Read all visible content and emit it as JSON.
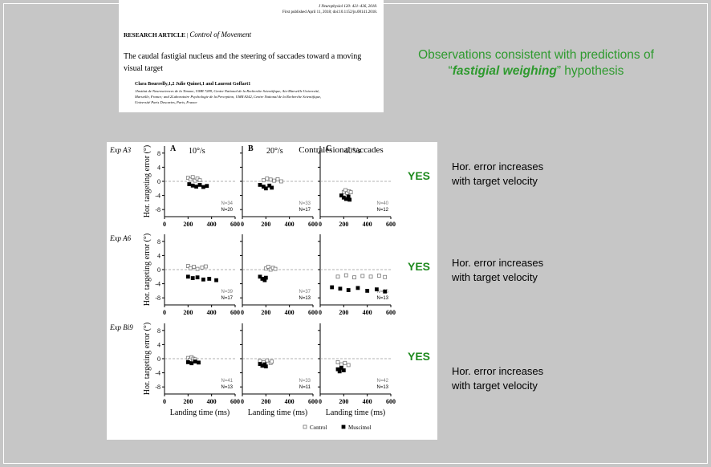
{
  "paper": {
    "citation": [
      "J Neurophysiol 120: 421–436, 2018.",
      "First published April 11, 2018; doi:10.1152/jn.00141.2018."
    ],
    "section": "RESEARCH ARTICLE",
    "separator": "|",
    "topic": "Control of Movement",
    "title": [
      "The caudal fastigial nucleus and the steering of saccades toward a moving",
      "visual target"
    ],
    "authors": "Clara Bourrelly,1,2 Julie Quinet,1 and Laurent Goffart1",
    "affiliation": [
      "1Institut de Neurosciences de la Timone, UMR 7289, Centre National de la Recherche Scientifique, Aix-Marseille Université,",
      "Marseille, France; and 2Laboratoire Psychologie de la Perception, UMR 8242, Centre National de la Recherche Scientifique,",
      "Université Paris Descartes, Paris, France"
    ]
  },
  "headline": {
    "line1": "Observations consistent with predictions of",
    "open_quote": "“",
    "emphasis": "fastigial weighing",
    "close": "” hypothesis"
  },
  "figure": {
    "title": "Contralesional saccades",
    "columns": [
      {
        "letter": "A",
        "velocity": "10°/s"
      },
      {
        "letter": "B",
        "velocity": "20°/s"
      },
      {
        "letter": "C",
        "velocity": "40°/s"
      }
    ],
    "rows": [
      "Exp A3",
      "Exp A6",
      "Exp Bi9"
    ],
    "y_label": "Hor. targeting error (°)",
    "x_label": "Landing time (ms)",
    "xlim": [
      0,
      600
    ],
    "xticks": [
      0,
      200,
      400,
      600
    ],
    "ylim": [
      -10,
      10
    ],
    "yticks": [
      8,
      4,
      0,
      -4,
      -8
    ],
    "legend": [
      {
        "name": "Control",
        "color": "#777777",
        "filled": false
      },
      {
        "name": "Muscimol",
        "color": "#000000",
        "filled": true
      }
    ],
    "panels": [
      {
        "n": [
          "N=34",
          "N=20"
        ],
        "points": [
          [
            [
              200,
              1
            ],
            [
              220,
              0.5
            ],
            [
              240,
              1.2
            ],
            [
              260,
              0.2
            ],
            [
              280,
              0.8
            ],
            [
              300,
              0.3
            ]
          ],
          [
            [
              210,
              -0.8
            ],
            [
              240,
              -1.2
            ],
            [
              270,
              -1.5
            ],
            [
              300,
              -1
            ],
            [
              330,
              -1.6
            ],
            [
              360,
              -1.3
            ]
          ]
        ]
      },
      {
        "n": [
          "N=33",
          "N=17"
        ],
        "points": [
          [
            [
              180,
              0.3
            ],
            [
              210,
              0.8
            ],
            [
              240,
              0.5
            ],
            [
              270,
              0.2
            ],
            [
              300,
              0.6
            ],
            [
              330,
              0
            ]
          ],
          [
            [
              150,
              -1
            ],
            [
              180,
              -1.5
            ],
            [
              200,
              -2
            ],
            [
              230,
              -1.2
            ],
            [
              250,
              -1.8
            ]
          ]
        ]
      },
      {
        "n": [
          "N=40",
          "N=12"
        ],
        "points": [
          [
            [
              200,
              -3
            ],
            [
              215,
              -2.5
            ],
            [
              230,
              -3.3
            ],
            [
              245,
              -2.8
            ],
            [
              260,
              -3.1
            ]
          ],
          [
            [
              180,
              -4
            ],
            [
              200,
              -4.6
            ],
            [
              220,
              -5
            ],
            [
              240,
              -4.3
            ],
            [
              250,
              -5.2
            ]
          ]
        ]
      },
      {
        "n": [
          "N=39",
          "N=17"
        ],
        "points": [
          [
            [
              200,
              1
            ],
            [
              220,
              0.4
            ],
            [
              250,
              0.8
            ],
            [
              280,
              0.2
            ],
            [
              320,
              0.6
            ],
            [
              350,
              0.9
            ]
          ],
          [
            [
              200,
              -2
            ],
            [
              240,
              -2.4
            ],
            [
              280,
              -2.2
            ],
            [
              330,
              -2.8
            ],
            [
              380,
              -2.6
            ],
            [
              440,
              -3
            ]
          ]
        ]
      },
      {
        "n": [
          "N=37",
          "N=13"
        ],
        "points": [
          [
            [
              200,
              0.3
            ],
            [
              220,
              0.8
            ],
            [
              240,
              0
            ],
            [
              260,
              0.5
            ],
            [
              280,
              0.2
            ]
          ],
          [
            [
              150,
              -2
            ],
            [
              170,
              -2.6
            ],
            [
              190,
              -3
            ],
            [
              200,
              -2.3
            ]
          ]
        ]
      },
      {
        "n": [
          "N=35",
          "N=13"
        ],
        "points": [
          [
            [
              150,
              -2
            ],
            [
              220,
              -1.6
            ],
            [
              290,
              -2.2
            ],
            [
              360,
              -1.8
            ],
            [
              430,
              -2
            ],
            [
              500,
              -1.7
            ],
            [
              550,
              -2.1
            ]
          ],
          [
            [
              100,
              -5
            ],
            [
              170,
              -5.4
            ],
            [
              240,
              -5.8
            ],
            [
              320,
              -5.2
            ],
            [
              400,
              -6
            ],
            [
              480,
              -5.6
            ],
            [
              550,
              -6.2
            ]
          ]
        ]
      },
      {
        "n": [
          "N=41",
          "N=13"
        ],
        "points": [
          [
            [
              200,
              0.2
            ],
            [
              215,
              -0.3
            ],
            [
              230,
              0.4
            ],
            [
              245,
              0
            ],
            [
              260,
              -0.2
            ]
          ],
          [
            [
              200,
              -1
            ],
            [
              230,
              -1.3
            ],
            [
              260,
              -0.8
            ],
            [
              290,
              -1.1
            ]
          ]
        ]
      },
      {
        "n": [
          "N=33",
          "N=11"
        ],
        "points": [
          [
            [
              150,
              -0.6
            ],
            [
              180,
              -1
            ],
            [
              210,
              -0.5
            ],
            [
              240,
              -1.2
            ],
            [
              250,
              -0.8
            ]
          ],
          [
            [
              150,
              -1.5
            ],
            [
              170,
              -2
            ],
            [
              190,
              -1.6
            ],
            [
              200,
              -2.2
            ]
          ]
        ]
      },
      {
        "n": [
          "N=42",
          "N=13"
        ],
        "points": [
          [
            [
              150,
              -1
            ],
            [
              180,
              -1.6
            ],
            [
              210,
              -1.2
            ],
            [
              240,
              -1.8
            ]
          ],
          [
            [
              150,
              -3
            ],
            [
              165,
              -3.6
            ],
            [
              180,
              -2.6
            ],
            [
              200,
              -3.3
            ]
          ]
        ]
      }
    ]
  },
  "findings": [
    {
      "verdict": "YES",
      "text": [
        "Hor. error increases",
        "with target velocity"
      ]
    },
    {
      "verdict": "YES",
      "text": [
        "Hor. error increases",
        "with target velocity"
      ]
    },
    {
      "verdict": "YES",
      "text": [
        "Hor. error increases",
        "with target velocity"
      ]
    }
  ]
}
